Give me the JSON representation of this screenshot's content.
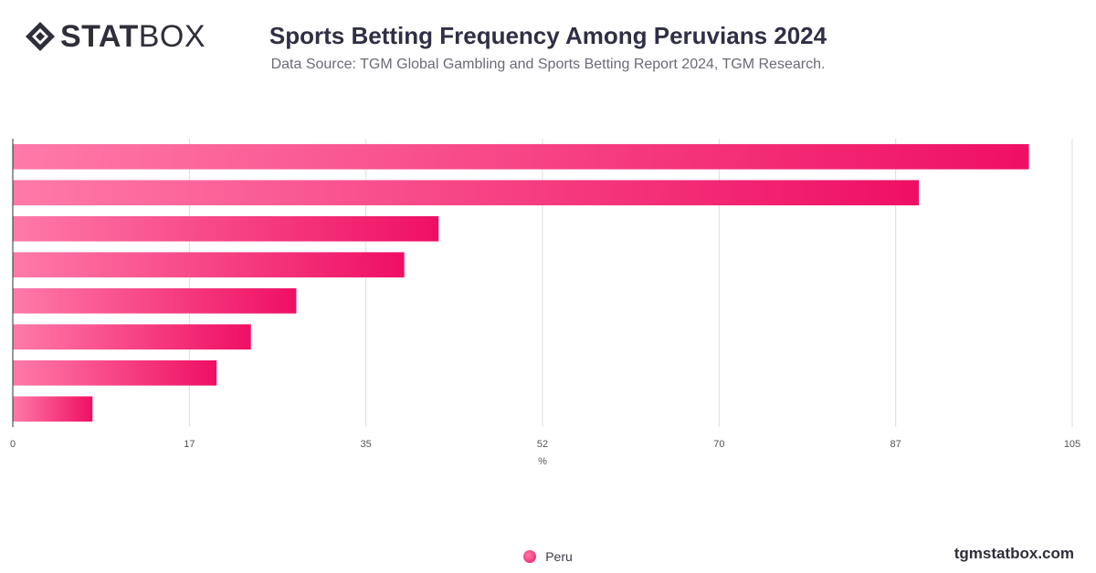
{
  "brand": {
    "logo_bold": "STAT",
    "logo_light": "BOX",
    "watermark": "tgmstatbox.com"
  },
  "header": {
    "title": "Sports Betting Frequency Among Peruvians 2024",
    "subtitle": "Data Source: TGM Global Gambling and Sports Betting Report 2024, TGM Research."
  },
  "chart_data": {
    "type": "bar",
    "orientation": "horizontal",
    "title": "Sports Betting Frequency Among Peruvians 2024",
    "xlabel": "%",
    "ylabel": "",
    "xlim": [
      0,
      105
    ],
    "x_ticks": [
      "0",
      "17",
      "35",
      "52",
      "70",
      "87",
      "105"
    ],
    "x_tick_values": [
      0,
      17.5,
      35,
      52.5,
      70,
      87.5,
      105
    ],
    "categories": [
      "",
      "",
      "",
      "",
      "",
      "",
      "",
      ""
    ],
    "series": [
      {
        "name": "Peru",
        "values": [
          100.7,
          89.8,
          42.2,
          38.8,
          28.1,
          23.6,
          20.2,
          7.9
        ]
      }
    ],
    "grid": true,
    "legend_position": "bottom-center",
    "colors": {
      "bar_start": "#ff7aa8",
      "bar_end": "#ef0f64",
      "grid": "#dcdcdc"
    }
  },
  "legend": {
    "items": [
      {
        "label": "Peru"
      }
    ]
  }
}
